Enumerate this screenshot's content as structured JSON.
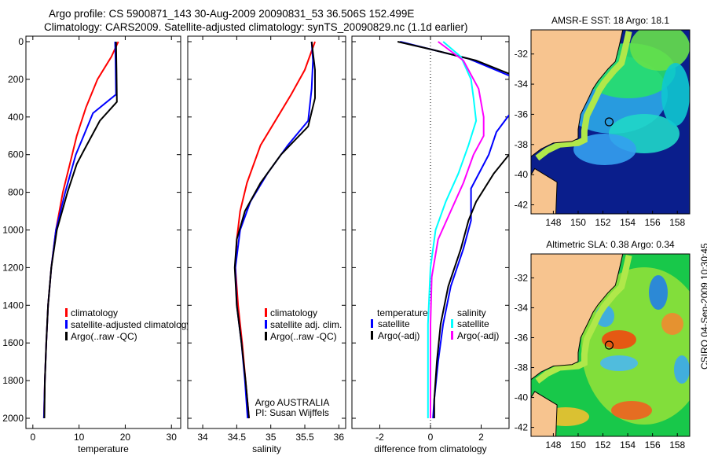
{
  "title_line1": "Argo profile: CS 5900871_143 30-Aug-2009 20090831_53 36.506S 152.499E",
  "title_line2": "Climatology: CARS2009. Satellite-adjusted climatology: synTS_20090829.nc (1.1d earlier)",
  "side_label": "CSIRO 04-Sep-2009 10:30:45",
  "colors": {
    "climatology": "#ff0000",
    "satellite": "#0000ff",
    "argo": "#000000",
    "sal_satellite": "#00ffff",
    "sal_argo": "#ff00ff",
    "land": "#f7c48f"
  },
  "chart_data": [
    {
      "type": "line",
      "xlabel": "temperature",
      "ylabel": "",
      "xlim": [
        -1.5,
        32
      ],
      "ylim": [
        2054,
        0
      ],
      "xticks": [
        "0",
        "10",
        "20",
        "30"
      ],
      "xtick_values": [
        0,
        10,
        20,
        30
      ],
      "yticks": [
        "0",
        "200",
        "400",
        "600",
        "800",
        "1000",
        "1200",
        "1400",
        "1600",
        "1800",
        "2000"
      ],
      "legend": [
        "climatology",
        "satellite-adjusted climatology",
        "Argo(..raw -QC)"
      ],
      "series": [
        {
          "name": "climatology",
          "color": "#ff0000",
          "points": [
            [
              18.5,
              0
            ],
            [
              17,
              80
            ],
            [
              14,
              200
            ],
            [
              11.5,
              350
            ],
            [
              9.5,
              500
            ],
            [
              8,
              650
            ],
            [
              6.5,
              800
            ],
            [
              5,
              1000
            ],
            [
              4,
              1200
            ],
            [
              3.3,
              1400
            ],
            [
              2.9,
              1600
            ],
            [
              2.6,
              1800
            ],
            [
              2.4,
              2000
            ]
          ]
        },
        {
          "name": "satellite-adjusted climatology",
          "color": "#0000ff",
          "points": [
            [
              17.8,
              0
            ],
            [
              17.9,
              100
            ],
            [
              18,
              280
            ],
            [
              13,
              380
            ],
            [
              11,
              500
            ],
            [
              9.3,
              600
            ],
            [
              7,
              800
            ],
            [
              5,
              1000
            ],
            [
              4,
              1200
            ],
            [
              3.3,
              1400
            ],
            [
              2.9,
              1600
            ],
            [
              2.6,
              1800
            ],
            [
              2.4,
              2000
            ]
          ]
        },
        {
          "name": "Argo(..raw -QC)",
          "color": "#000000",
          "points": [
            [
              18,
              0
            ],
            [
              18.1,
              150
            ],
            [
              18.2,
              320
            ],
            [
              14.5,
              420
            ],
            [
              11,
              580
            ],
            [
              9.5,
              650
            ],
            [
              7.5,
              800
            ],
            [
              5.2,
              1000
            ],
            [
              4,
              1200
            ],
            [
              3.3,
              1400
            ],
            [
              2.9,
              1600
            ],
            [
              2.6,
              1800
            ],
            [
              2.5,
              2000
            ]
          ]
        }
      ]
    },
    {
      "type": "line",
      "xlabel": "salinity",
      "ylabel": "",
      "xlim": [
        33.78,
        36.1
      ],
      "ylim": [
        2054,
        0
      ],
      "xticks": [
        "34",
        "34.5",
        "35",
        "35.5",
        "36"
      ],
      "xtick_values": [
        34,
        34.5,
        35,
        35.5,
        36
      ],
      "legend": [
        "climatology",
        "satellite adj. clim.",
        "Argo(..raw -QC)"
      ],
      "annotation": [
        "Argo AUSTRALIA",
        "PI: Susan Wijffels"
      ],
      "series": [
        {
          "name": "climatology",
          "color": "#ff0000",
          "points": [
            [
              35.65,
              0
            ],
            [
              35.5,
              150
            ],
            [
              35.3,
              280
            ],
            [
              35.1,
              400
            ],
            [
              34.85,
              550
            ],
            [
              34.65,
              750
            ],
            [
              34.55,
              900
            ],
            [
              34.5,
              1050
            ],
            [
              34.48,
              1200
            ],
            [
              34.52,
              1400
            ],
            [
              34.58,
              1600
            ],
            [
              34.63,
              1800
            ],
            [
              34.68,
              2000
            ]
          ]
        },
        {
          "name": "satellite adj. clim.",
          "color": "#0000ff",
          "points": [
            [
              35.6,
              0
            ],
            [
              35.62,
              100
            ],
            [
              35.6,
              250
            ],
            [
              35.55,
              420
            ],
            [
              35.25,
              550
            ],
            [
              34.95,
              700
            ],
            [
              34.7,
              850
            ],
            [
              34.55,
              1000
            ],
            [
              34.48,
              1200
            ],
            [
              34.5,
              1400
            ],
            [
              34.57,
              1600
            ],
            [
              34.62,
              1800
            ],
            [
              34.66,
              2000
            ]
          ]
        },
        {
          "name": "Argo(..raw -QC)",
          "color": "#000000",
          "points": [
            [
              35.6,
              0
            ],
            [
              35.65,
              150
            ],
            [
              35.65,
              300
            ],
            [
              35.55,
              450
            ],
            [
              35.15,
              600
            ],
            [
              34.85,
              750
            ],
            [
              34.62,
              900
            ],
            [
              34.5,
              1050
            ],
            [
              34.47,
              1200
            ],
            [
              34.5,
              1400
            ],
            [
              34.57,
              1600
            ],
            [
              34.63,
              1800
            ],
            [
              34.68,
              2000
            ]
          ]
        }
      ]
    },
    {
      "type": "line",
      "xlabel": "difference from climatology",
      "ylabel": "",
      "xlim": [
        -3.1,
        3.1
      ],
      "ylim": [
        2054,
        0
      ],
      "xticks": [
        "-2",
        "0",
        "2"
      ],
      "xtick_values": [
        -2,
        0,
        2
      ],
      "legend_left": {
        "header": "temperature",
        "items": [
          "satellite",
          "Argo(-adj)"
        ]
      },
      "legend_right": {
        "header": "salinity",
        "items": [
          "satellite",
          "Argo(-adj)"
        ]
      },
      "series": [
        {
          "name": "temperature satellite",
          "color": "#0000ff",
          "points": [
            [
              -1.2,
              0
            ],
            [
              0,
              40
            ],
            [
              1.5,
              90
            ],
            [
              3.1,
              180
            ]
          ]
        },
        {
          "name": "temperature satellite deep",
          "color": "#0000ff",
          "points": [
            [
              3.1,
              390
            ],
            [
              2.6,
              480
            ],
            [
              2.3,
              600
            ],
            [
              1.6,
              780
            ],
            [
              1.6,
              950
            ],
            [
              1.3,
              1100
            ],
            [
              0.8,
              1300
            ],
            [
              0.5,
              1500
            ],
            [
              0.3,
              1700
            ],
            [
              0.15,
              1900
            ],
            [
              0.1,
              2000
            ]
          ]
        },
        {
          "name": "temperature Argo(-adj)",
          "color": "#000000",
          "points": [
            [
              -1.3,
              0
            ],
            [
              0,
              40
            ],
            [
              1.8,
              100
            ],
            [
              3.1,
              170
            ]
          ]
        },
        {
          "name": "temperature Argo(-adj) deep",
          "color": "#000000",
          "points": [
            [
              3.1,
              600
            ],
            [
              2.5,
              700
            ],
            [
              1.8,
              850
            ],
            [
              1.5,
              950
            ],
            [
              1.2,
              1100
            ],
            [
              0.7,
              1300
            ],
            [
              0.4,
              1500
            ],
            [
              0.25,
              1700
            ],
            [
              0.15,
              1900
            ],
            [
              0.15,
              2000
            ]
          ]
        },
        {
          "name": "salinity satellite",
          "color": "#00ffff",
          "points": [
            [
              0.5,
              0
            ],
            [
              1.2,
              80
            ],
            [
              1.6,
              200
            ],
            [
              1.7,
              300
            ],
            [
              1.8,
              420
            ],
            [
              1.5,
              550
            ],
            [
              1.1,
              700
            ],
            [
              0.6,
              850
            ],
            [
              0.2,
              1000
            ],
            [
              0,
              1200
            ],
            [
              -0.1,
              1500
            ],
            [
              -0.1,
              1800
            ],
            [
              -0.1,
              2000
            ]
          ]
        },
        {
          "name": "salinity Argo(-adj)",
          "color": "#ff00ff",
          "points": [
            [
              0.3,
              0
            ],
            [
              1.3,
              100
            ],
            [
              1.9,
              250
            ],
            [
              2.1,
              400
            ],
            [
              2.1,
              500
            ],
            [
              1.7,
              600
            ],
            [
              1.3,
              750
            ],
            [
              0.8,
              900
            ],
            [
              0.3,
              1050
            ],
            [
              0.05,
              1250
            ],
            [
              0,
              1500
            ],
            [
              0,
              1800
            ],
            [
              0,
              2000
            ]
          ]
        }
      ]
    },
    {
      "type": "heatmap",
      "title": "AMSR-E SST: 18 Argo: 18.1",
      "xticks": [
        "148",
        "150",
        "152",
        "154",
        "156",
        "158"
      ],
      "xtick_values": [
        148,
        150,
        152,
        154,
        156,
        158
      ],
      "yticks": [
        "-32",
        "-34",
        "-36",
        "-38",
        "-40",
        "-42"
      ],
      "ytick_values": [
        -32,
        -34,
        -36,
        -38,
        -40,
        -42
      ],
      "xlim": [
        146.2,
        159
      ],
      "ylim": [
        -42.6,
        -30.4
      ],
      "argo_position": [
        152.5,
        -36.5
      ]
    },
    {
      "type": "heatmap",
      "title": "Altimetric SLA: 0.38 Argo: 0.34",
      "xticks": [
        "148",
        "150",
        "152",
        "154",
        "156",
        "158"
      ],
      "xtick_values": [
        148,
        150,
        152,
        154,
        156,
        158
      ],
      "yticks": [
        "-32",
        "-34",
        "-36",
        "-38",
        "-40",
        "-42"
      ],
      "ytick_values": [
        -32,
        -34,
        -36,
        -38,
        -40,
        -42
      ],
      "xlim": [
        146.2,
        159
      ],
      "ylim": [
        -42.6,
        -30.4
      ],
      "argo_position": [
        152.5,
        -36.5
      ]
    }
  ]
}
